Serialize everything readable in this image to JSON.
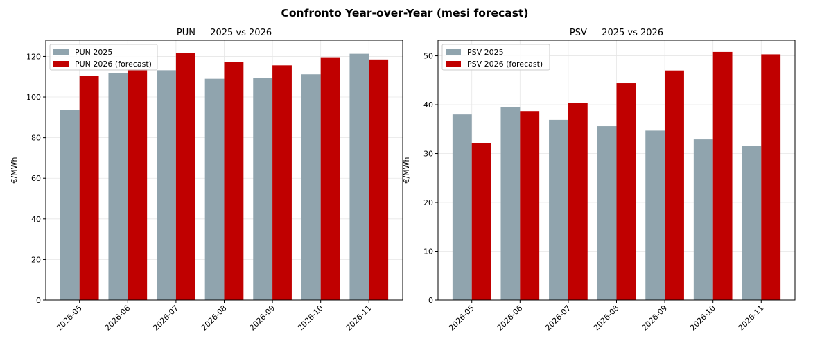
{
  "figure_title": "Confronto Year-over-Year (mesi forecast)",
  "colors": {
    "y2025": "#90a4ae",
    "y2026": "#c00000",
    "grid": "#e6e6e6"
  },
  "chart_data": [
    {
      "type": "bar",
      "title": "PUN — 2025 vs 2026",
      "xlabel": "",
      "ylabel": "€/MWh",
      "ylim": [
        0,
        128
      ],
      "yticks": [
        0,
        20,
        40,
        60,
        80,
        100,
        120
      ],
      "grid": true,
      "legend": "top-left",
      "categories": [
        "2026-05",
        "2026-06",
        "2026-07",
        "2026-08",
        "2026-09",
        "2026-10",
        "2026-11"
      ],
      "series": [
        {
          "name": "PUN 2025",
          "values": [
            93.8,
            111.8,
            113.2,
            109.0,
            109.3,
            111.2,
            121.3
          ]
        },
        {
          "name": "PUN 2026 (forecast)",
          "values": [
            110.3,
            114.0,
            121.7,
            117.3,
            115.6,
            119.6,
            118.5
          ]
        }
      ]
    },
    {
      "type": "bar",
      "title": "PSV — 2025 vs 2026",
      "xlabel": "",
      "ylabel": "€/MWh",
      "ylim": [
        0,
        53.2
      ],
      "yticks": [
        0,
        10,
        20,
        30,
        40,
        50
      ],
      "grid": true,
      "legend": "top-left",
      "categories": [
        "2026-05",
        "2026-06",
        "2026-07",
        "2026-08",
        "2026-09",
        "2026-10",
        "2026-11"
      ],
      "series": [
        {
          "name": "PSV 2025",
          "values": [
            38.0,
            39.5,
            36.9,
            35.6,
            34.7,
            32.9,
            31.6
          ]
        },
        {
          "name": "PSV 2026 (forecast)",
          "values": [
            32.1,
            38.7,
            40.3,
            44.4,
            47.0,
            50.8,
            50.3
          ]
        }
      ]
    }
  ]
}
